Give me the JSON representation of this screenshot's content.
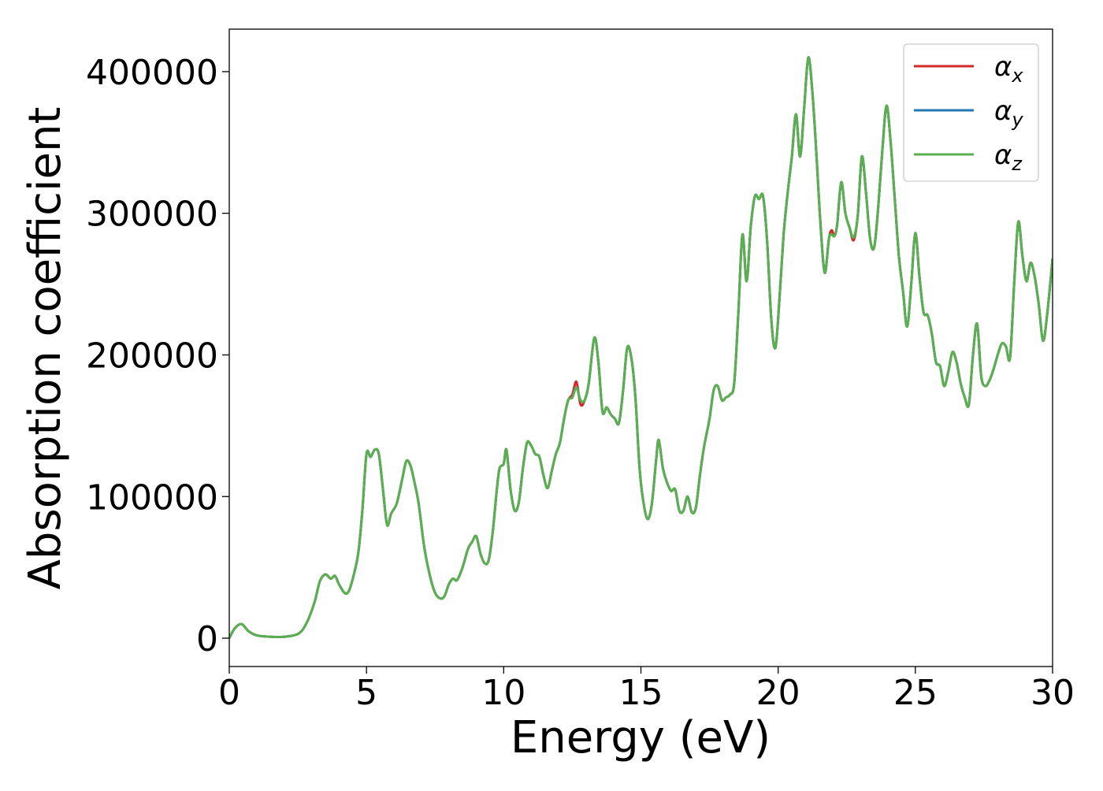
{
  "chart_data": {
    "type": "line",
    "title": "",
    "xlabel": "Energy (eV)",
    "ylabel": "Absorption coefficient",
    "xlim": [
      0,
      30
    ],
    "ylim": [
      -20000,
      430000
    ],
    "x_ticks": [
      0,
      5,
      10,
      15,
      20,
      25,
      30
    ],
    "x_tick_labels": [
      "0",
      "5",
      "10",
      "15",
      "20",
      "25",
      "30"
    ],
    "y_ticks": [
      0,
      100000,
      200000,
      300000,
      400000
    ],
    "y_tick_labels": [
      "0",
      "100000",
      "200000",
      "300000",
      "400000"
    ],
    "grid": false,
    "legend_position": "top-right",
    "series": [
      {
        "name": "α",
        "subscript": "x",
        "color": "#d62728",
        "x": [
          0,
          0.2,
          0.45,
          0.7,
          1.0,
          1.5,
          2.0,
          2.5,
          2.8,
          3.1,
          3.3,
          3.5,
          3.7,
          3.85,
          4.0,
          4.2,
          4.35,
          4.5,
          4.7,
          4.85,
          5.0,
          5.15,
          5.3,
          5.45,
          5.6,
          5.75,
          5.9,
          6.1,
          6.3,
          6.45,
          6.6,
          6.75,
          6.9,
          7.1,
          7.3,
          7.5,
          7.7,
          7.85,
          8.0,
          8.15,
          8.3,
          8.5,
          8.7,
          8.85,
          9.0,
          9.15,
          9.3,
          9.45,
          9.6,
          9.75,
          9.85,
          10.0,
          10.1,
          10.25,
          10.4,
          10.55,
          10.7,
          10.85,
          11.0,
          11.15,
          11.3,
          11.45,
          11.6,
          11.75,
          11.9,
          12.05,
          12.2,
          12.35,
          12.5,
          12.65,
          12.8,
          12.95,
          13.1,
          13.3,
          13.45,
          13.6,
          13.75,
          13.9,
          14.05,
          14.2,
          14.35,
          14.5,
          14.65,
          14.8,
          14.95,
          15.1,
          15.25,
          15.4,
          15.55,
          15.65,
          15.8,
          15.95,
          16.1,
          16.25,
          16.4,
          16.55,
          16.7,
          16.85,
          17.0,
          17.15,
          17.3,
          17.5,
          17.65,
          17.8,
          17.95,
          18.1,
          18.25,
          18.4,
          18.55,
          18.7,
          18.85,
          19.0,
          19.15,
          19.3,
          19.45,
          19.6,
          19.75,
          19.9,
          20.05,
          20.2,
          20.35,
          20.5,
          20.65,
          20.8,
          20.95,
          21.1,
          21.25,
          21.4,
          21.55,
          21.7,
          21.85,
          21.95,
          22.05,
          22.15,
          22.3,
          22.45,
          22.6,
          22.75,
          22.9,
          23.05,
          23.2,
          23.35,
          23.5,
          23.65,
          23.8,
          23.95,
          24.1,
          24.25,
          24.4,
          24.55,
          24.7,
          24.85,
          25.0,
          25.15,
          25.3,
          25.45,
          25.6,
          25.75,
          25.9,
          26.05,
          26.2,
          26.35,
          26.5,
          26.65,
          26.8,
          26.95,
          27.1,
          27.25,
          27.4,
          27.55,
          27.7,
          27.85,
          28.0,
          28.15,
          28.3,
          28.45,
          28.6,
          28.75,
          28.9,
          29.05,
          29.2,
          29.35,
          29.5,
          29.65,
          29.8,
          30.0
        ],
        "y": [
          0,
          7000,
          10000,
          5000,
          2000,
          1000,
          1000,
          3000,
          10000,
          25000,
          40000,
          45000,
          42000,
          44000,
          38000,
          32000,
          33000,
          42000,
          60000,
          90000,
          130000,
          128000,
          133000,
          130000,
          105000,
          80000,
          88000,
          95000,
          112000,
          125000,
          122000,
          110000,
          95000,
          65000,
          45000,
          32000,
          28000,
          30000,
          38000,
          42000,
          41000,
          50000,
          63000,
          68000,
          72000,
          60000,
          53000,
          55000,
          75000,
          105000,
          120000,
          123000,
          133000,
          105000,
          90000,
          96000,
          120000,
          138000,
          136000,
          130000,
          128000,
          115000,
          106000,
          118000,
          130000,
          138000,
          155000,
          168000,
          172000,
          181000,
          165000,
          168000,
          180000,
          212000,
          195000,
          160000,
          163000,
          158000,
          155000,
          152000,
          175000,
          205000,
          198000,
          170000,
          120000,
          95000,
          84000,
          95000,
          125000,
          140000,
          120000,
          110000,
          104000,
          105000,
          90000,
          90000,
          100000,
          89000,
          92000,
          115000,
          135000,
          155000,
          175000,
          178000,
          168000,
          170000,
          172000,
          180000,
          230000,
          285000,
          252000,
          290000,
          312000,
          310000,
          312000,
          280000,
          225000,
          205000,
          240000,
          285000,
          315000,
          340000,
          370000,
          340000,
          375000,
          410000,
          385000,
          340000,
          290000,
          258000,
          282000,
          288000,
          284000,
          292000,
          322000,
          300000,
          290000,
          281000,
          298000,
          340000,
          315000,
          282000,
          276000,
          305000,
          345000,
          376000,
          350000,
          310000,
          270000,
          245000,
          220000,
          250000,
          286000,
          255000,
          230000,
          228000,
          215000,
          195000,
          192000,
          178000,
          188000,
          202000,
          195000,
          180000,
          170000,
          165000,
          200000,
          222000,
          185000,
          178000,
          182000,
          190000,
          200000,
          208000,
          206000,
          198000,
          250000,
          294000,
          270000,
          252000,
          265000,
          255000,
          235000,
          210000,
          228000,
          268000
        ]
      },
      {
        "name": "α",
        "subscript": "y",
        "color": "#1f77b4",
        "x": [
          0,
          0.2,
          0.45,
          0.7,
          1.0,
          1.5,
          2.0,
          2.5,
          2.8,
          3.1,
          3.3,
          3.5,
          3.7,
          3.85,
          4.0,
          4.2,
          4.35,
          4.5,
          4.7,
          4.85,
          5.0,
          5.15,
          5.3,
          5.45,
          5.6,
          5.75,
          5.9,
          6.1,
          6.3,
          6.45,
          6.6,
          6.75,
          6.9,
          7.1,
          7.3,
          7.5,
          7.7,
          7.85,
          8.0,
          8.15,
          8.3,
          8.5,
          8.7,
          8.85,
          9.0,
          9.15,
          9.3,
          9.45,
          9.6,
          9.75,
          9.85,
          10.0,
          10.1,
          10.25,
          10.4,
          10.55,
          10.7,
          10.85,
          11.0,
          11.15,
          11.3,
          11.45,
          11.6,
          11.75,
          11.9,
          12.05,
          12.2,
          12.35,
          12.5,
          12.65,
          12.8,
          12.95,
          13.1,
          13.3,
          13.45,
          13.6,
          13.75,
          13.9,
          14.05,
          14.2,
          14.35,
          14.5,
          14.65,
          14.8,
          14.95,
          15.1,
          15.25,
          15.4,
          15.55,
          15.65,
          15.8,
          15.95,
          16.1,
          16.25,
          16.4,
          16.55,
          16.7,
          16.85,
          17.0,
          17.15,
          17.3,
          17.5,
          17.65,
          17.8,
          17.95,
          18.1,
          18.25,
          18.4,
          18.55,
          18.7,
          18.85,
          19.0,
          19.15,
          19.3,
          19.45,
          19.6,
          19.75,
          19.9,
          20.05,
          20.2,
          20.35,
          20.5,
          20.65,
          20.8,
          20.95,
          21.1,
          21.25,
          21.4,
          21.55,
          21.7,
          21.85,
          21.95,
          22.05,
          22.15,
          22.3,
          22.45,
          22.6,
          22.75,
          22.9,
          23.05,
          23.2,
          23.35,
          23.5,
          23.65,
          23.8,
          23.95,
          24.1,
          24.25,
          24.4,
          24.55,
          24.7,
          24.85,
          25.0,
          25.15,
          25.3,
          25.45,
          25.6,
          25.75,
          25.9,
          26.05,
          26.2,
          26.35,
          26.5,
          26.65,
          26.8,
          26.95,
          27.1,
          27.25,
          27.4,
          27.55,
          27.7,
          27.85,
          28.0,
          28.15,
          28.3,
          28.45,
          28.6,
          28.75,
          28.9,
          29.05,
          29.2,
          29.35,
          29.5,
          29.65,
          29.8,
          30.0
        ],
        "y": [
          0,
          7000,
          10000,
          5000,
          2000,
          1000,
          1000,
          3000,
          10000,
          25000,
          40000,
          45000,
          42000,
          44000,
          38000,
          32000,
          33000,
          42000,
          60000,
          90000,
          130000,
          128000,
          133000,
          130000,
          105000,
          80000,
          88000,
          95000,
          112000,
          125000,
          122000,
          110000,
          95000,
          65000,
          45000,
          32000,
          28000,
          30000,
          38000,
          42000,
          41000,
          50000,
          63000,
          68000,
          72000,
          60000,
          53000,
          55000,
          75000,
          105000,
          120000,
          123000,
          133000,
          105000,
          90000,
          96000,
          120000,
          138000,
          136000,
          130000,
          128000,
          115000,
          106000,
          118000,
          130000,
          138000,
          155000,
          168000,
          170000,
          177000,
          168000,
          168000,
          180000,
          212000,
          195000,
          160000,
          163000,
          158000,
          155000,
          152000,
          175000,
          205000,
          198000,
          170000,
          120000,
          95000,
          84000,
          95000,
          125000,
          140000,
          120000,
          110000,
          104000,
          105000,
          90000,
          90000,
          100000,
          89000,
          92000,
          115000,
          135000,
          155000,
          175000,
          178000,
          168000,
          170000,
          172000,
          180000,
          230000,
          285000,
          252000,
          290000,
          312000,
          310000,
          312000,
          280000,
          225000,
          205000,
          240000,
          285000,
          315000,
          340000,
          370000,
          340000,
          375000,
          410000,
          385000,
          340000,
          290000,
          258000,
          282000,
          285000,
          284000,
          292000,
          322000,
          300000,
          290000,
          283000,
          298000,
          340000,
          315000,
          282000,
          276000,
          305000,
          345000,
          376000,
          350000,
          310000,
          270000,
          245000,
          220000,
          250000,
          286000,
          255000,
          230000,
          228000,
          215000,
          195000,
          192000,
          178000,
          188000,
          202000,
          195000,
          180000,
          170000,
          165000,
          200000,
          222000,
          185000,
          178000,
          182000,
          190000,
          200000,
          208000,
          206000,
          198000,
          250000,
          294000,
          270000,
          252000,
          265000,
          255000,
          235000,
          210000,
          228000,
          268000
        ]
      },
      {
        "name": "α",
        "subscript": "z",
        "color": "#5aaf4f",
        "x": [
          0,
          0.2,
          0.45,
          0.7,
          1.0,
          1.5,
          2.0,
          2.5,
          2.8,
          3.1,
          3.3,
          3.5,
          3.7,
          3.85,
          4.0,
          4.2,
          4.35,
          4.5,
          4.7,
          4.85,
          5.0,
          5.15,
          5.3,
          5.45,
          5.6,
          5.75,
          5.9,
          6.1,
          6.3,
          6.45,
          6.6,
          6.75,
          6.9,
          7.1,
          7.3,
          7.5,
          7.7,
          7.85,
          8.0,
          8.15,
          8.3,
          8.5,
          8.7,
          8.85,
          9.0,
          9.15,
          9.3,
          9.45,
          9.6,
          9.75,
          9.85,
          10.0,
          10.1,
          10.25,
          10.4,
          10.55,
          10.7,
          10.85,
          11.0,
          11.15,
          11.3,
          11.45,
          11.6,
          11.75,
          11.9,
          12.05,
          12.2,
          12.35,
          12.5,
          12.65,
          12.8,
          12.95,
          13.1,
          13.3,
          13.45,
          13.6,
          13.75,
          13.9,
          14.05,
          14.2,
          14.35,
          14.5,
          14.65,
          14.8,
          14.95,
          15.1,
          15.25,
          15.4,
          15.55,
          15.65,
          15.8,
          15.95,
          16.1,
          16.25,
          16.4,
          16.55,
          16.7,
          16.85,
          17.0,
          17.15,
          17.3,
          17.5,
          17.65,
          17.8,
          17.95,
          18.1,
          18.25,
          18.4,
          18.55,
          18.7,
          18.85,
          19.0,
          19.15,
          19.3,
          19.45,
          19.6,
          19.75,
          19.9,
          20.05,
          20.2,
          20.35,
          20.5,
          20.65,
          20.8,
          20.95,
          21.1,
          21.25,
          21.4,
          21.55,
          21.7,
          21.85,
          21.95,
          22.05,
          22.15,
          22.3,
          22.45,
          22.6,
          22.75,
          22.9,
          23.05,
          23.2,
          23.35,
          23.5,
          23.65,
          23.8,
          23.95,
          24.1,
          24.25,
          24.4,
          24.55,
          24.7,
          24.85,
          25.0,
          25.15,
          25.3,
          25.45,
          25.6,
          25.75,
          25.9,
          26.05,
          26.2,
          26.35,
          26.5,
          26.65,
          26.8,
          26.95,
          27.1,
          27.25,
          27.4,
          27.55,
          27.7,
          27.85,
          28.0,
          28.15,
          28.3,
          28.45,
          28.6,
          28.75,
          28.9,
          29.05,
          29.2,
          29.35,
          29.5,
          29.65,
          29.8,
          30.0
        ],
        "y": [
          0,
          7000,
          10000,
          5000,
          2000,
          1000,
          1000,
          3000,
          10000,
          25000,
          40000,
          45000,
          42000,
          44000,
          38000,
          32000,
          33000,
          42000,
          60000,
          90000,
          130000,
          128000,
          133000,
          130000,
          105000,
          80000,
          88000,
          95000,
          112000,
          125000,
          122000,
          110000,
          95000,
          65000,
          45000,
          32000,
          28000,
          30000,
          38000,
          42000,
          41000,
          50000,
          63000,
          68000,
          72000,
          60000,
          53000,
          55000,
          75000,
          105000,
          120000,
          123000,
          133000,
          105000,
          90000,
          96000,
          120000,
          138000,
          136000,
          130000,
          128000,
          115000,
          106000,
          118000,
          130000,
          138000,
          155000,
          168000,
          170000,
          177000,
          168000,
          168000,
          180000,
          212000,
          195000,
          160000,
          163000,
          158000,
          155000,
          152000,
          175000,
          205000,
          198000,
          170000,
          120000,
          95000,
          84000,
          95000,
          125000,
          140000,
          120000,
          110000,
          104000,
          105000,
          90000,
          90000,
          100000,
          89000,
          92000,
          115000,
          135000,
          155000,
          175000,
          178000,
          168000,
          170000,
          172000,
          180000,
          230000,
          285000,
          252000,
          290000,
          312000,
          310000,
          312000,
          280000,
          225000,
          205000,
          240000,
          285000,
          315000,
          340000,
          370000,
          340000,
          375000,
          410000,
          385000,
          340000,
          290000,
          258000,
          282000,
          285000,
          284000,
          292000,
          322000,
          300000,
          290000,
          283000,
          298000,
          340000,
          315000,
          282000,
          276000,
          305000,
          345000,
          376000,
          350000,
          310000,
          270000,
          245000,
          220000,
          250000,
          286000,
          255000,
          230000,
          228000,
          215000,
          195000,
          192000,
          178000,
          188000,
          202000,
          195000,
          180000,
          170000,
          165000,
          200000,
          222000,
          185000,
          178000,
          182000,
          190000,
          200000,
          208000,
          206000,
          198000,
          250000,
          294000,
          270000,
          252000,
          265000,
          255000,
          235000,
          210000,
          228000,
          268000
        ]
      }
    ]
  }
}
